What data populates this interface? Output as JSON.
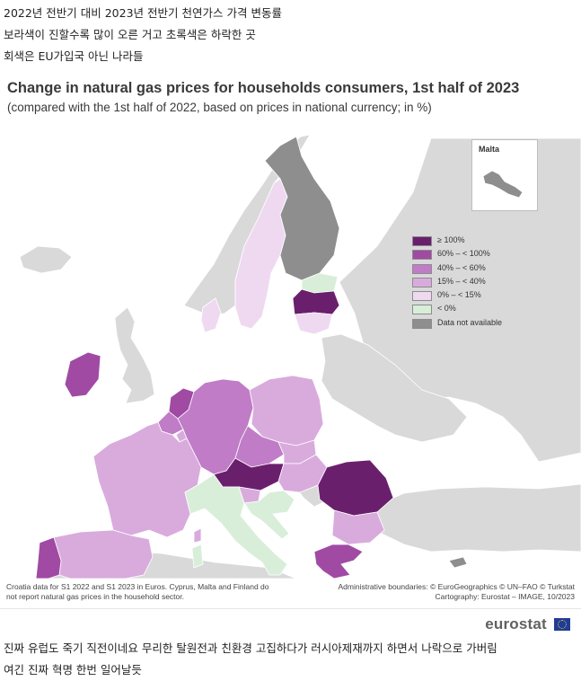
{
  "post": {
    "line1": "2022년 전반기 대비 2023년 전반기 천연가스 가격 변동률",
    "line2": "보라색이 진할수록 많이 오른 거고 초록색은 하락한 곳",
    "line3": "회색은 EU가입국 아닌 나라들",
    "line4": "진짜 유럽도 죽기 직전이네요 무리한 탈원전과 친환경 고집하다가 러시아제재까지 하면서 나락으로 가버림",
    "line5": "여긴 진짜 혁명 한번 일어날듯"
  },
  "figure": {
    "title": "Change in natural gas prices for households consumers, 1st half of 2023",
    "subtitle": "(compared with the 1st half of 2022, based on prices in national currency; in %)",
    "inset_label": "Malta",
    "footnote_left": [
      "Croatia data for S1 2022 and S1 2023 in Euros. Cyprus, Malta and Finland do",
      "not report natural gas prices in the household sector."
    ],
    "footnote_right": [
      "Administrative boundaries: © EuroGeographics © UN–FAO © Turkstat",
      "Cartography: Eurostat – IMAGE, 10/2023"
    ],
    "brand": "eurostat"
  },
  "legend": [
    {
      "label": "≥ 100%",
      "color": "#6a1f6d"
    },
    {
      "label": "60% – < 100%",
      "color": "#a04aa4"
    },
    {
      "label": "40% – < 60%",
      "color": "#c07cc7"
    },
    {
      "label": "15% – < 40%",
      "color": "#d9abdd"
    },
    {
      "label": "0% – < 15%",
      "color": "#efd9f1"
    },
    {
      "label": "< 0%",
      "color": "#d8eed9"
    },
    {
      "label": "Data not available",
      "color": "#8e8e8e"
    }
  ],
  "colors": {
    "sea": "#ffffff",
    "non_eu_land": "#d9d9d9",
    "border": "#ffffff"
  },
  "countries": [
    {
      "name": "Ireland",
      "class": "60% – < 100%"
    },
    {
      "name": "Portugal",
      "class": "60% – < 100%"
    },
    {
      "name": "Spain",
      "class": "15% – < 40%"
    },
    {
      "name": "France",
      "class": "15% – < 40%"
    },
    {
      "name": "Belgium",
      "class": "40% – < 60%"
    },
    {
      "name": "Netherlands",
      "class": "60% – < 100%"
    },
    {
      "name": "Luxembourg",
      "class": "15% – < 40%"
    },
    {
      "name": "Germany",
      "class": "40% – < 60%"
    },
    {
      "name": "Denmark",
      "class": "0% – < 15%"
    },
    {
      "name": "Sweden",
      "class": "0% – < 15%"
    },
    {
      "name": "Finland",
      "class": "Data not available"
    },
    {
      "name": "Estonia",
      "class": "< 0%"
    },
    {
      "name": "Latvia",
      "class": "≥ 100%"
    },
    {
      "name": "Lithuania",
      "class": "0% – < 15%"
    },
    {
      "name": "Poland",
      "class": "15% – < 40%"
    },
    {
      "name": "Czechia",
      "class": "40% – < 60%"
    },
    {
      "name": "Slovakia",
      "class": "15% – < 40%"
    },
    {
      "name": "Austria",
      "class": "≥ 100%"
    },
    {
      "name": "Hungary",
      "class": "15% – < 40%"
    },
    {
      "name": "Slovenia",
      "class": "15% – < 40%"
    },
    {
      "name": "Croatia",
      "class": "< 0%"
    },
    {
      "name": "Italy",
      "class": "< 0%"
    },
    {
      "name": "Romania",
      "class": "≥ 100%"
    },
    {
      "name": "Bulgaria",
      "class": "15% – < 40%"
    },
    {
      "name": "Greece",
      "class": "60% – < 100%"
    },
    {
      "name": "Cyprus",
      "class": "Data not available"
    },
    {
      "name": "Malta",
      "class": "Data not available"
    }
  ]
}
